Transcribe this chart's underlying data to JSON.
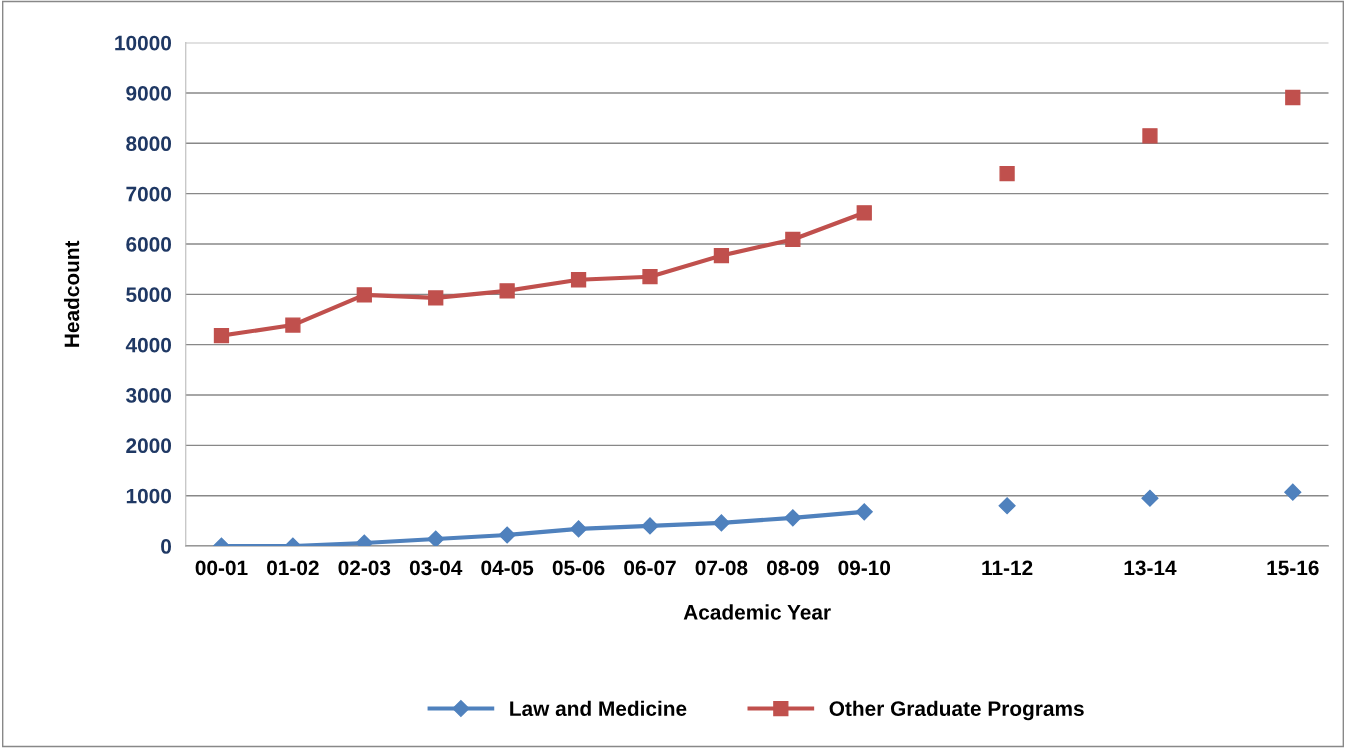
{
  "chart_data": {
    "type": "line",
    "xlabel": "Academic Year",
    "ylabel": "Headcount",
    "categories": [
      "00-01",
      "01-02",
      "02-03",
      "03-04",
      "04-05",
      "05-06",
      "06-07",
      "07-08",
      "08-09",
      "09-10",
      null,
      "11-12",
      null,
      "13-14",
      null,
      "15-16"
    ],
    "series": [
      {
        "name": "Law and Medicine",
        "color": "#4f81bd",
        "marker": "diamond",
        "values": [
          0,
          0,
          60,
          140,
          220,
          340,
          400,
          460,
          560,
          680,
          null,
          800,
          null,
          950,
          null,
          1070
        ]
      },
      {
        "name": "Other Graduate Programs",
        "color": "#c0504d",
        "marker": "square",
        "values": [
          4180,
          4390,
          4990,
          4930,
          5070,
          5290,
          5350,
          5770,
          6090,
          6620,
          null,
          7400,
          null,
          8150,
          null,
          8910
        ]
      }
    ],
    "ylim": [
      0,
      10000
    ],
    "yticks": [
      0,
      1000,
      2000,
      3000,
      4000,
      5000,
      6000,
      7000,
      8000,
      9000,
      10000
    ],
    "grid": "y",
    "legend": "bottom",
    "line_style": "solid"
  }
}
